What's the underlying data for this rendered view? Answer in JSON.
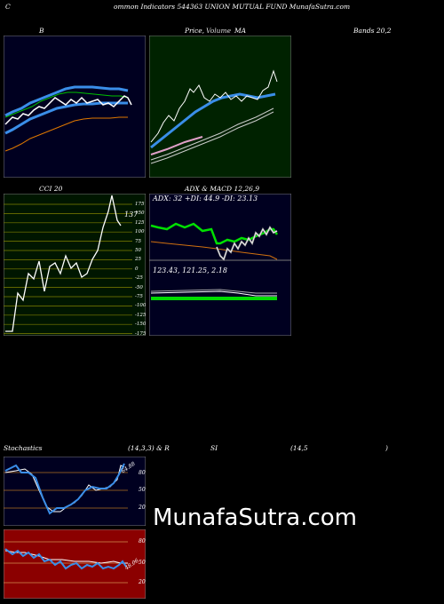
{
  "header": {
    "left_char": "C",
    "title": "ommon  Indicators 544363 UNION  MUTUAL  FUND MunafaSutra.com"
  },
  "panels": {
    "bollinger": {
      "label": "B",
      "right_label": "Bands 20,2"
    },
    "price": {
      "label": "Price,",
      "overlay_label": "Volume",
      "ma_label": "MA"
    },
    "cci": {
      "label": "CCI 20",
      "value_label": "137",
      "levels": [
        "175",
        "150",
        "125",
        "100",
        "75",
        "50",
        "25",
        "0",
        "-25",
        "-50",
        "-75",
        "-100",
        "-125",
        "-150",
        "-175"
      ]
    },
    "adx": {
      "label": "ADX  & MACD 12,26,9",
      "readout": "ADX: 32  +DI: 44.9 -DI: 23.13",
      "macd_readout": "123.43,  121.25,  2.18"
    },
    "stochastics": {
      "label": "Stochastics",
      "params": "(14,3,3) & R",
      "levels": [
        "80",
        "50",
        "20"
      ],
      "value_tag": "64.88"
    },
    "rsi": {
      "label": "SI",
      "params": "(14,5",
      "close_paren": ")",
      "levels": [
        "80",
        "50",
        "20"
      ],
      "value_tag": "48.06"
    }
  },
  "watermark": "MunafaSutra.com",
  "colors": {
    "navy_bg": "#000020",
    "green_bg": "#002200",
    "cci_bg": "#001600",
    "rsi_bg": "#8b0000",
    "band_blue": "#3a8ee8",
    "mid_green": "#00c000",
    "lower_orange": "#e07800",
    "adx_green": "#00e000",
    "adx_orange": "#d07010"
  }
}
